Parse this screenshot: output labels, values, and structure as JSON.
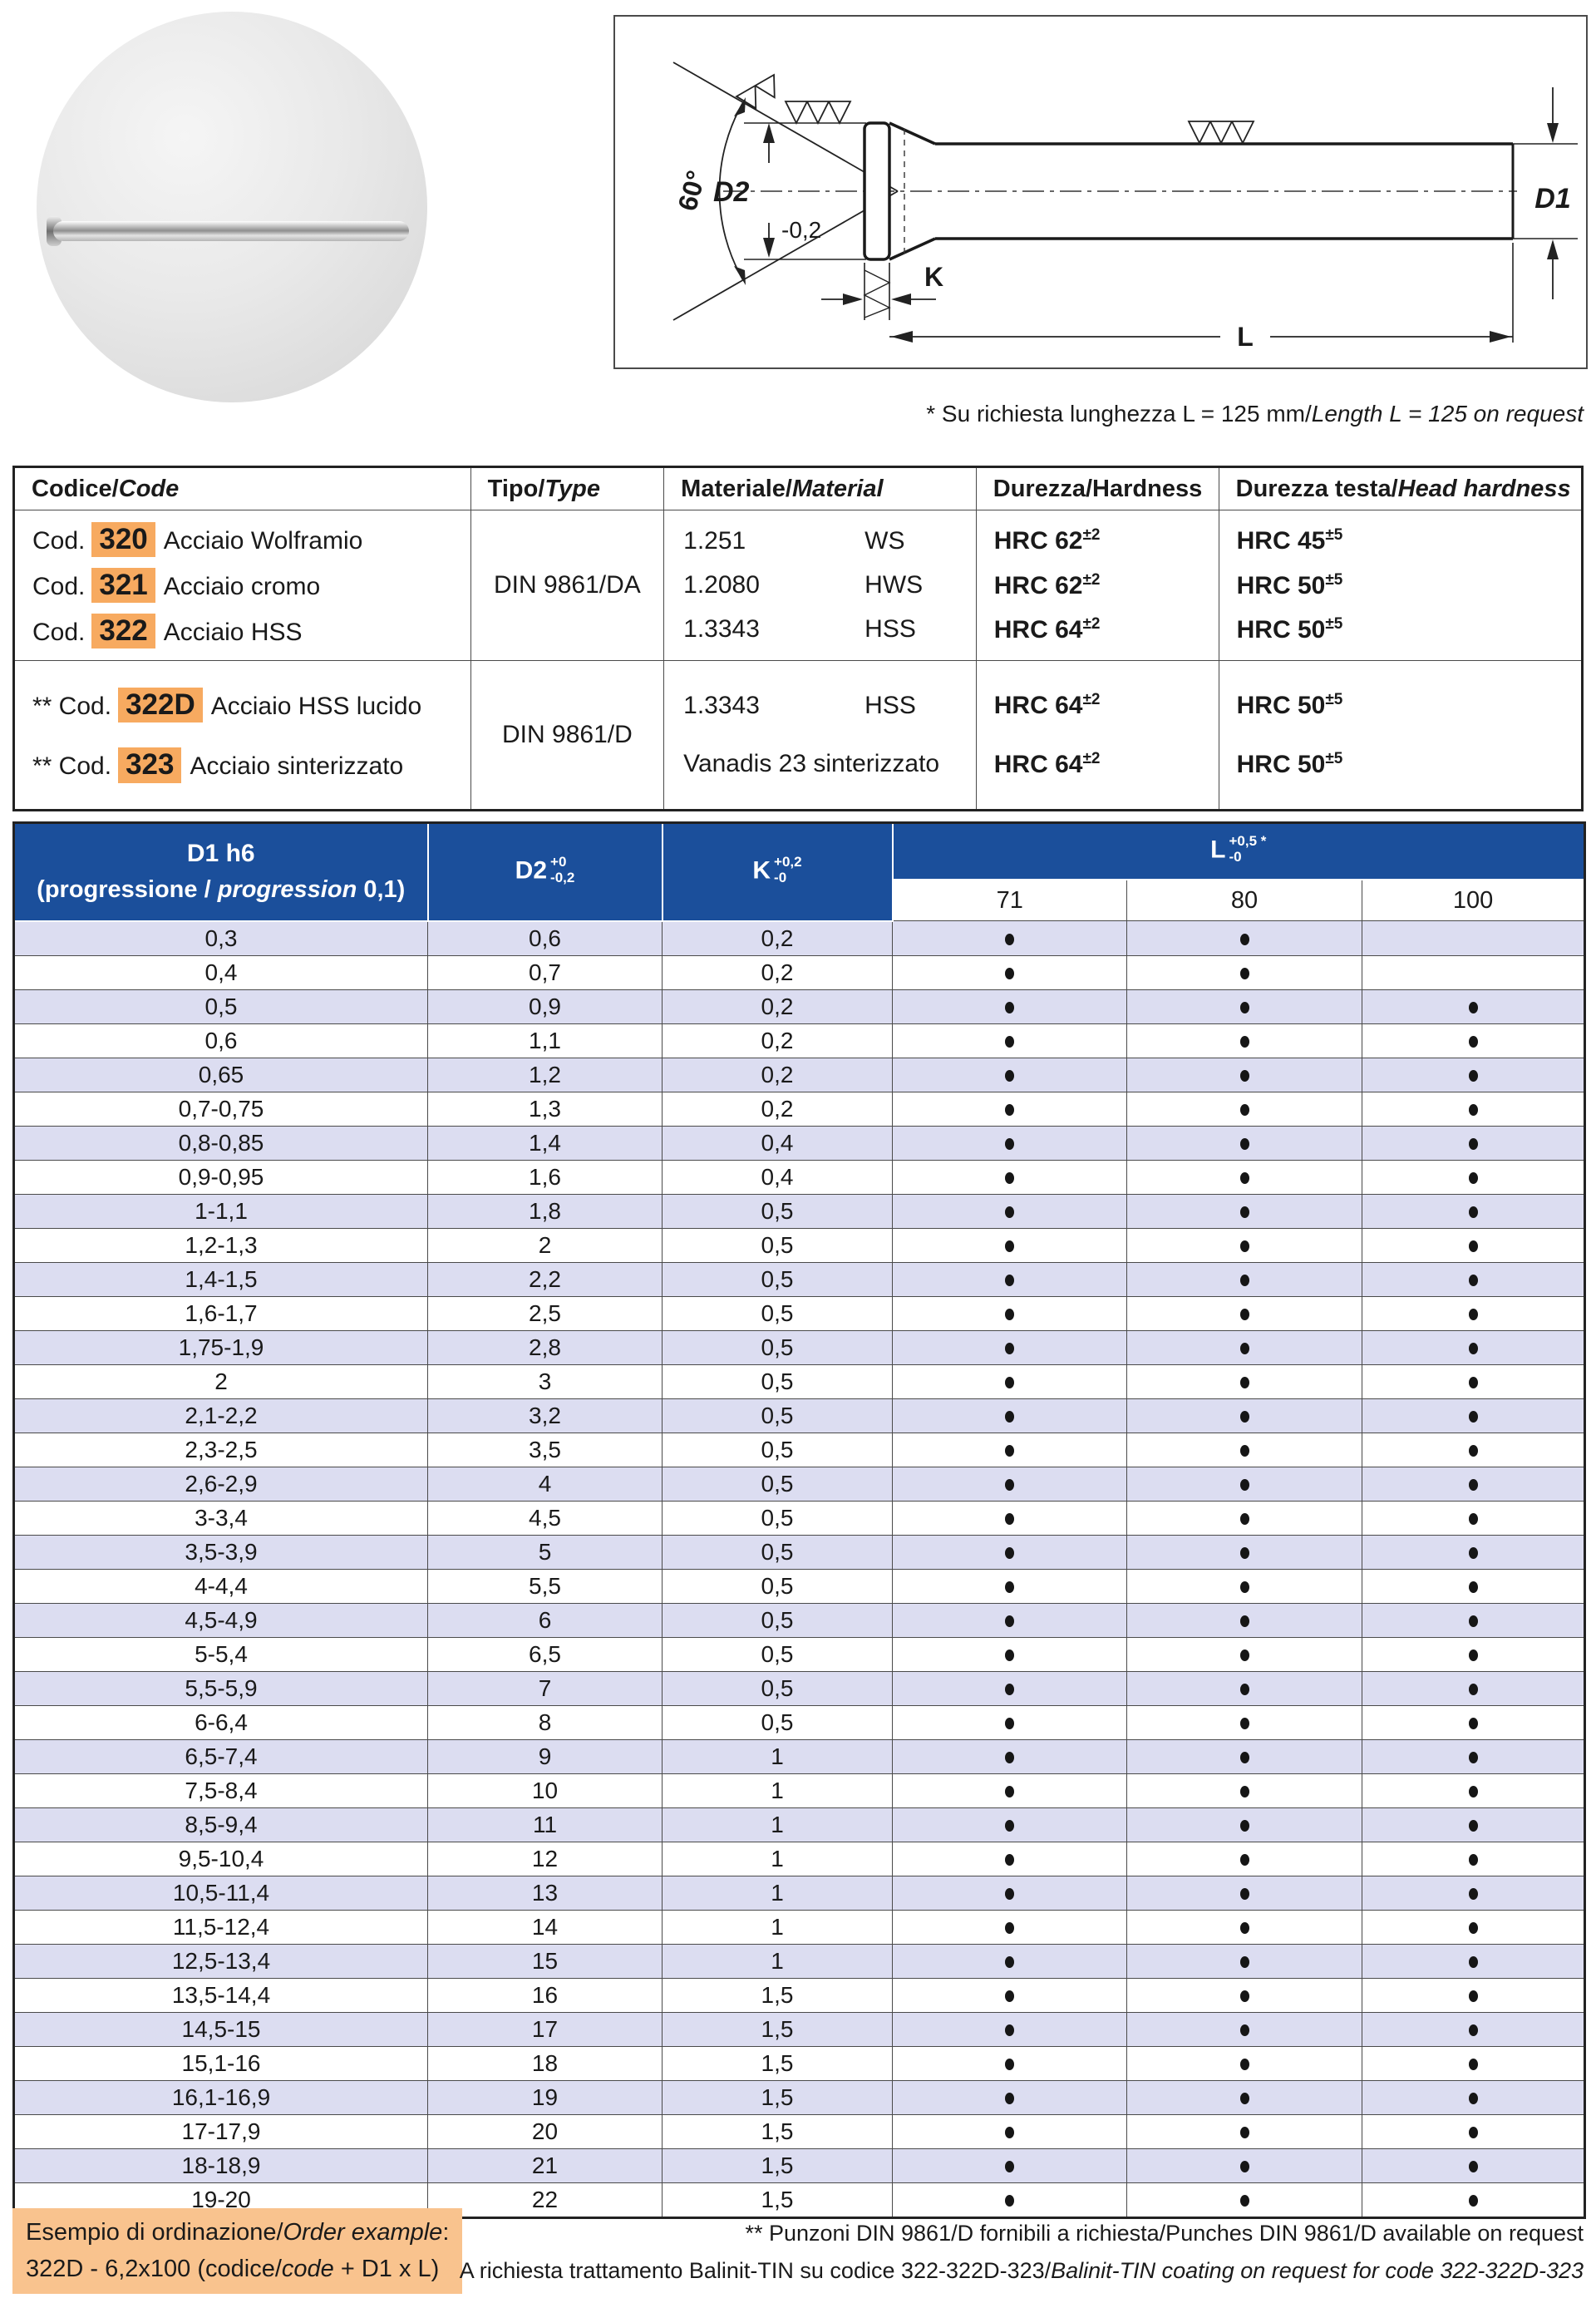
{
  "colors": {
    "header_blue": "#1b4f9b",
    "row_alt": "#dcddf1",
    "code_highlight": "#f7aa60",
    "example_bg": "#f9c38e",
    "table_line": "#4a4a4a"
  },
  "note_under_drawing": {
    "pre": "* Su richiesta lunghezza L = 125 mm/",
    "it": "Length L = 125 on request"
  },
  "drawing": {
    "angle": "60°",
    "d2": "D2",
    "d2_tol": "-0,2",
    "k": "K",
    "l": "L",
    "d1": "D1"
  },
  "code_table": {
    "headers": [
      {
        "it": "Codice/",
        "en": "Code"
      },
      {
        "it": "Tipo/",
        "en": "Type"
      },
      {
        "it": "Materiale/",
        "en": "Material"
      },
      {
        "it": "Durezza/",
        "en": "Hardness"
      },
      {
        "it": "Durezza testa/",
        "en": "Head hardness"
      }
    ],
    "groups": [
      {
        "type": "DIN 9861/DA",
        "rows": [
          {
            "prefix": "Cod.",
            "code": "320",
            "desc": "Acciaio Wolframio",
            "mat_no": "1.251",
            "mat": "WS",
            "hrc": "HRC 62",
            "hrc_tol": "±2",
            "head": "HRC 45",
            "head_tol": "±5"
          },
          {
            "prefix": "Cod.",
            "code": "321",
            "desc": "Acciaio cromo",
            "mat_no": "1.2080",
            "mat": "HWS",
            "hrc": "HRC 62",
            "hrc_tol": "±2",
            "head": "HRC 50",
            "head_tol": "±5"
          },
          {
            "prefix": "Cod.",
            "code": "322",
            "desc": "Acciaio HSS",
            "mat_no": "1.3343",
            "mat": "HSS",
            "hrc": "HRC 64",
            "hrc_tol": "±2",
            "head": "HRC 50",
            "head_tol": "±5"
          }
        ]
      },
      {
        "type": "DIN 9861/D",
        "rows": [
          {
            "prefix": "** Cod.",
            "code": "322D",
            "desc": "Acciaio HSS lucido",
            "mat_no": "1.3343",
            "mat": "HSS",
            "hrc": "HRC 64",
            "hrc_tol": "±2",
            "head": "HRC 50",
            "head_tol": "±5"
          },
          {
            "prefix": "** Cod.",
            "code": "323",
            "desc": "Acciaio sinterizzato",
            "mat_no": "Vanadis 23 sinterizzato",
            "mat": "",
            "hrc": "HRC 64",
            "hrc_tol": "±2",
            "head": "HRC 50",
            "head_tol": "±5"
          }
        ]
      }
    ]
  },
  "main_table": {
    "header": {
      "d1_line1": "D1 h6",
      "d1_line2_pre": "(progressione / ",
      "d1_line2_it": "progression",
      "d1_line2_post": " 0,1)",
      "d2": {
        "base": "D2",
        "sup": "+0",
        "sub": "-0,2"
      },
      "k": {
        "base": "K",
        "sup": "+0,2",
        "sub": "-0"
      },
      "l": {
        "base": "L",
        "sup": "+0,5 *",
        "sub": "-0"
      },
      "lengths": [
        "71",
        "80",
        "100"
      ]
    },
    "rows": [
      [
        "0,3",
        "0,6",
        "0,2",
        1,
        1,
        0
      ],
      [
        "0,4",
        "0,7",
        "0,2",
        1,
        1,
        0
      ],
      [
        "0,5",
        "0,9",
        "0,2",
        1,
        1,
        1
      ],
      [
        "0,6",
        "1,1",
        "0,2",
        1,
        1,
        1
      ],
      [
        "0,65",
        "1,2",
        "0,2",
        1,
        1,
        1
      ],
      [
        "0,7-0,75",
        "1,3",
        "0,2",
        1,
        1,
        1
      ],
      [
        "0,8-0,85",
        "1,4",
        "0,4",
        1,
        1,
        1
      ],
      [
        "0,9-0,95",
        "1,6",
        "0,4",
        1,
        1,
        1
      ],
      [
        "1-1,1",
        "1,8",
        "0,5",
        1,
        1,
        1
      ],
      [
        "1,2-1,3",
        "2",
        "0,5",
        1,
        1,
        1
      ],
      [
        "1,4-1,5",
        "2,2",
        "0,5",
        1,
        1,
        1
      ],
      [
        "1,6-1,7",
        "2,5",
        "0,5",
        1,
        1,
        1
      ],
      [
        "1,75-1,9",
        "2,8",
        "0,5",
        1,
        1,
        1
      ],
      [
        "2",
        "3",
        "0,5",
        1,
        1,
        1
      ],
      [
        "2,1-2,2",
        "3,2",
        "0,5",
        1,
        1,
        1
      ],
      [
        "2,3-2,5",
        "3,5",
        "0,5",
        1,
        1,
        1
      ],
      [
        "2,6-2,9",
        "4",
        "0,5",
        1,
        1,
        1
      ],
      [
        "3-3,4",
        "4,5",
        "0,5",
        1,
        1,
        1
      ],
      [
        "3,5-3,9",
        "5",
        "0,5",
        1,
        1,
        1
      ],
      [
        "4-4,4",
        "5,5",
        "0,5",
        1,
        1,
        1
      ],
      [
        "4,5-4,9",
        "6",
        "0,5",
        1,
        1,
        1
      ],
      [
        "5-5,4",
        "6,5",
        "0,5",
        1,
        1,
        1
      ],
      [
        "5,5-5,9",
        "7",
        "0,5",
        1,
        1,
        1
      ],
      [
        "6-6,4",
        "8",
        "0,5",
        1,
        1,
        1
      ],
      [
        "6,5-7,4",
        "9",
        "1",
        1,
        1,
        1
      ],
      [
        "7,5-8,4",
        "10",
        "1",
        1,
        1,
        1
      ],
      [
        "8,5-9,4",
        "11",
        "1",
        1,
        1,
        1
      ],
      [
        "9,5-10,4",
        "12",
        "1",
        1,
        1,
        1
      ],
      [
        "10,5-11,4",
        "13",
        "1",
        1,
        1,
        1
      ],
      [
        "11,5-12,4",
        "14",
        "1",
        1,
        1,
        1
      ],
      [
        "12,5-13,4",
        "15",
        "1",
        1,
        1,
        1
      ],
      [
        "13,5-14,4",
        "16",
        "1,5",
        1,
        1,
        1
      ],
      [
        "14,5-15",
        "17",
        "1,5",
        1,
        1,
        1
      ],
      [
        "15,1-16",
        "18",
        "1,5",
        1,
        1,
        1
      ],
      [
        "16,1-16,9",
        "19",
        "1,5",
        1,
        1,
        1
      ],
      [
        "17-17,9",
        "20",
        "1,5",
        1,
        1,
        1
      ],
      [
        "18-18,9",
        "21",
        "1,5",
        1,
        1,
        1
      ],
      [
        "19-20",
        "22",
        "1,5",
        1,
        1,
        1
      ]
    ]
  },
  "footer": {
    "example_line1_pre": "Esempio di ordinazione/",
    "example_line1_it": "Order example",
    "example_line1_post": ":",
    "example_line2_pre": "322D - 6,2x100 (codice/",
    "example_line2_it": "code",
    "example_line2_post": " + D1 x L)",
    "note1": "** Punzoni DIN 9861/D fornibili a richiesta/Punches DIN 9861/D available on request",
    "note2_pre": "A richiesta trattamento Balinit-TIN su codice 322-322D-323/",
    "note2_it": "Balinit-TIN coating on request for code 322-322D-323"
  }
}
